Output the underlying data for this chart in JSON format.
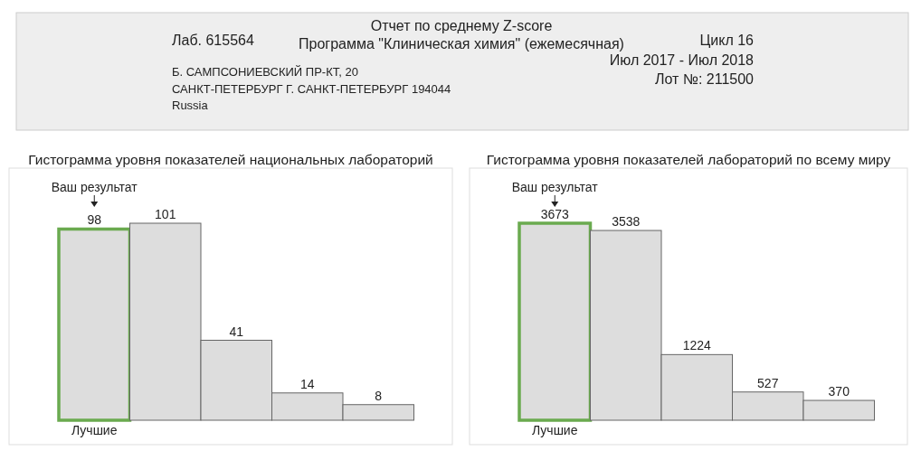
{
  "chart_data": [
    {
      "type": "other",
      "title": "Отчет по среднему Z-score",
      "subtitle": "Программа \"Клиническая химия\" (ежемесячная)",
      "annotations": [
        "Лаб. 615564",
        "Б. САМПСОНИЕВСКИЙ ПР-КТ, 20",
        "САНКТ-ПЕТЕРБУРГ Г. САНКТ-ПЕТЕРБУРГ  194044",
        "Russia",
        "Цикл 16",
        "Июл 2017 - Июл 2018",
        "Лот №: 211500"
      ]
    },
    {
      "type": "bar",
      "title": "Гистограмма уровня показателей национальных лабораторий",
      "categories": [
        null,
        null,
        null,
        null,
        null
      ],
      "values": [
        98,
        101,
        41,
        14,
        8
      ],
      "color": "#dddddd",
      "data_labels": true,
      "annotations": [
        "Ваш результат",
        "Лучшие"
      ]
    },
    {
      "type": "bar",
      "title": "Гистограмма уровня показателей лабораторий по всему миру",
      "categories": [
        null,
        null,
        null,
        null,
        null
      ],
      "values": [
        3673,
        3538,
        1224,
        527,
        370
      ],
      "color": "#dddddd",
      "data_labels": true,
      "annotations": [
        "Ваш результат",
        "Лучшие"
      ]
    }
  ]
}
